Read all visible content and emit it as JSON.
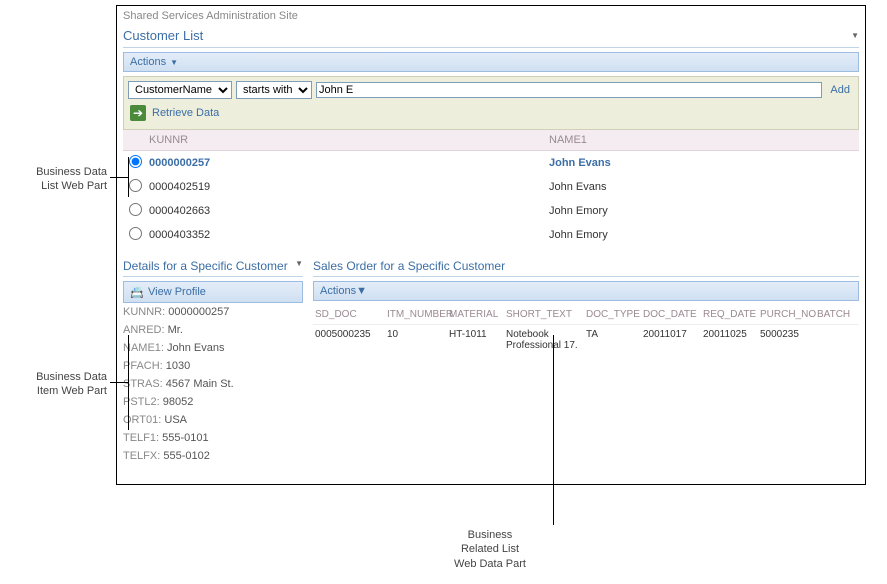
{
  "site_title": "Shared Services Administration Site",
  "customer_list": {
    "title": "Customer List",
    "actions_label": "Actions",
    "filter": {
      "field_options": [
        "CustomerName"
      ],
      "field_selected": "CustomerName",
      "op_options": [
        "starts with"
      ],
      "op_selected": "starts with",
      "value": "John E",
      "add_label": "Add",
      "retrieve_label": "Retrieve Data"
    },
    "columns": {
      "kunnr": "KUNNR",
      "name1": "NAME1"
    },
    "rows": [
      {
        "kunnr": "0000000257",
        "name1": "John Evans",
        "selected": true,
        "is_link": true
      },
      {
        "kunnr": "0000402519",
        "name1": "John Evans",
        "selected": false,
        "is_link": false
      },
      {
        "kunnr": "0000402663",
        "name1": "John Emory",
        "selected": false,
        "is_link": false
      },
      {
        "kunnr": "0000403352",
        "name1": "John Emory",
        "selected": false,
        "is_link": false
      }
    ]
  },
  "details": {
    "title": "Details for a Specific Customer",
    "view_profile": "View Profile",
    "fields": [
      {
        "label": "KUNNR:",
        "value": "0000000257"
      },
      {
        "label": "ANRED:",
        "value": "Mr."
      },
      {
        "label": "NAME1:",
        "value": "John Evans"
      },
      {
        "label": "PFACH:",
        "value": "1030"
      },
      {
        "label": "STRAS:",
        "value": "4567 Main St."
      },
      {
        "label": "PSTL2:",
        "value": "98052"
      },
      {
        "label": "ORT01:",
        "value": "USA"
      },
      {
        "label": "TELF1:",
        "value": "555-0101"
      },
      {
        "label": "TELFX:",
        "value": "555-0102"
      }
    ]
  },
  "sales": {
    "title": "Sales Order for a Specific Customer",
    "actions_label": "Actions",
    "columns": [
      "SD_DOC",
      "ITM_NUMBER",
      "MATERIAL",
      "SHORT_TEXT",
      "DOC_TYPE",
      "DOC_DATE",
      "REQ_DATE",
      "PURCH_NO",
      "BATCH"
    ],
    "row": {
      "sd_doc": "0005000235",
      "itm_number": "10",
      "material": "HT-1011",
      "short_text": "Notebook Professional 17.",
      "doc_type": "TA",
      "doc_date": "20011017",
      "req_date": "20011025",
      "purch_no": "5000235",
      "batch": ""
    }
  },
  "callouts": {
    "list": "Business Data\nList Web Part",
    "item": "Business Data\nItem Web Part",
    "related": "Business\nRelated List\nWeb Data Part"
  }
}
